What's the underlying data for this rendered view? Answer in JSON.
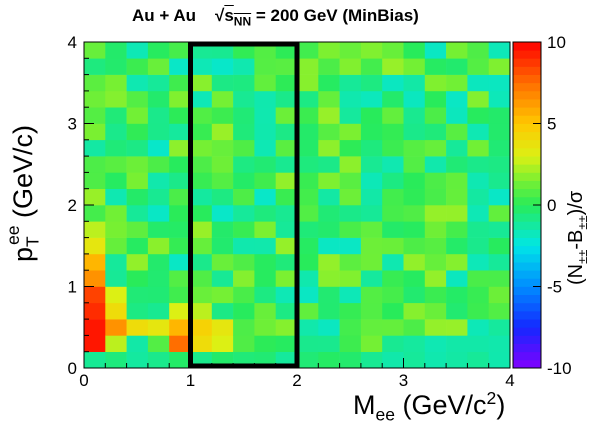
{
  "chart_data": {
    "type": "heatmap",
    "title": {
      "system": "Au + Au",
      "energy_sqrt": "s",
      "energy_sub": "NN",
      "energy_rest": " = 200 GeV (MinBias)"
    },
    "xlabel": {
      "main": "M",
      "sub": "ee",
      "unit": " (GeV/c",
      "sup": "2",
      "close": ")"
    },
    "ylabel": {
      "main": "p",
      "sub": "T",
      "sup": "ee",
      "unit": " (GeV/c)"
    },
    "zlabel": {
      "open": "(N",
      "sub1": "±±",
      "mid": "-B",
      "sub2": "±±",
      "close": ")/σ"
    },
    "xlim": [
      0,
      4
    ],
    "ylim": [
      0,
      4
    ],
    "zlim": [
      -10,
      10
    ],
    "xticks": [
      0,
      1,
      2,
      3,
      4
    ],
    "yticks": [
      0,
      1,
      2,
      3,
      4
    ],
    "zticks": [
      10,
      5,
      0,
      -5,
      -10
    ],
    "bins": {
      "nx": 20,
      "ny": 20,
      "dx": 0.2,
      "dy": 0.2
    },
    "background_range": [
      -2,
      2
    ],
    "hot_cells": [
      {
        "x": 0.1,
        "y": 0.3,
        "z": 9.5
      },
      {
        "x": 0.1,
        "y": 0.5,
        "z": 9.5
      },
      {
        "x": 0.1,
        "y": 0.7,
        "z": 9.0
      },
      {
        "x": 0.1,
        "y": 0.9,
        "z": 8.5
      },
      {
        "x": 0.1,
        "y": 1.1,
        "z": 6.5
      },
      {
        "x": 0.1,
        "y": 1.3,
        "z": 5.5
      },
      {
        "x": 0.1,
        "y": 1.5,
        "z": 3.5
      },
      {
        "x": 0.1,
        "y": 1.7,
        "z": 2.5
      },
      {
        "x": 0.3,
        "y": 0.5,
        "z": 6.5
      },
      {
        "x": 0.3,
        "y": 0.7,
        "z": 4.0
      },
      {
        "x": 0.3,
        "y": 0.9,
        "z": 3.0
      },
      {
        "x": 0.3,
        "y": 0.3,
        "z": 2.5
      },
      {
        "x": 0.5,
        "y": 0.5,
        "z": 4.0
      },
      {
        "x": 0.7,
        "y": 0.5,
        "z": 3.5
      },
      {
        "x": 0.9,
        "y": 0.5,
        "z": 5.5
      },
      {
        "x": 1.1,
        "y": 0.5,
        "z": 4.5
      },
      {
        "x": 1.3,
        "y": 0.5,
        "z": 3.5
      },
      {
        "x": 0.9,
        "y": 0.7,
        "z": 3.0
      },
      {
        "x": 1.1,
        "y": 0.7,
        "z": 2.5
      },
      {
        "x": 0.9,
        "y": 0.3,
        "z": 7.5
      },
      {
        "x": 1.1,
        "y": 0.3,
        "z": 4.0
      },
      {
        "x": 1.3,
        "y": 0.3,
        "z": 3.0
      }
    ],
    "selection_box": {
      "x": [
        1,
        2
      ],
      "y": [
        0,
        4
      ]
    },
    "grid": false,
    "colorbar": "right"
  }
}
